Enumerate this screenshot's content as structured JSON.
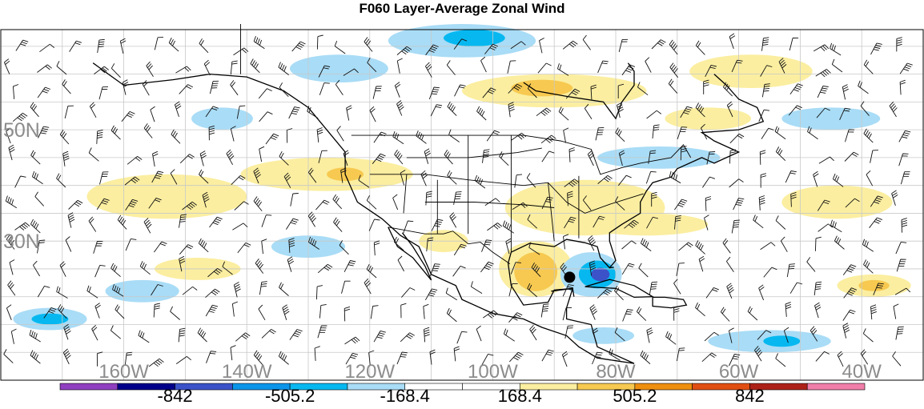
{
  "title": "F060 Layer-Average Zonal Wind",
  "map": {
    "projection": "cylindrical",
    "lon_range": [
      -180,
      -30
    ],
    "lat_range": [
      5,
      68
    ],
    "lat_labels": [
      {
        "text": "50N",
        "lat": 50
      },
      {
        "text": "30N",
        "lat": 30
      }
    ],
    "lon_labels": [
      {
        "text": "160W",
        "lon": -160
      },
      {
        "text": "140W",
        "lon": -140
      },
      {
        "text": "120W",
        "lon": -120
      },
      {
        "text": "100W",
        "lon": -100
      },
      {
        "text": "80W",
        "lon": -80
      },
      {
        "text": "60W",
        "lon": -60
      },
      {
        "text": "40W",
        "lon": -40
      }
    ],
    "marker": {
      "name": "station-dot",
      "lon": -87.5,
      "lat": 23.5
    },
    "shaded_regions": [
      {
        "level": "pos2",
        "lon": -88,
        "lat": 36.5,
        "rlon": 9,
        "rlat": 3
      },
      {
        "level": "pos3",
        "lon": -90,
        "lat": 36.2,
        "rlon": 5,
        "rlat": 2
      },
      {
        "level": "pos1",
        "lon": -85,
        "lat": 36,
        "rlon": 13,
        "rlat": 5
      },
      {
        "level": "pos1",
        "lon": -93,
        "lat": 25,
        "rlon": 6,
        "rlat": 5
      },
      {
        "level": "pos2",
        "lon": -93,
        "lat": 24.5,
        "rlon": 3.5,
        "rlat": 3.5
      },
      {
        "level": "neg1",
        "lon": -84,
        "lat": 24,
        "rlon": 5,
        "rlat": 4
      },
      {
        "level": "neg2",
        "lon": -83,
        "lat": 24,
        "rlon": 3,
        "rlat": 2.5
      },
      {
        "level": "neg3",
        "lon": -82.5,
        "lat": 24,
        "rlon": 1.5,
        "rlat": 1.2
      },
      {
        "level": "pos1",
        "lon": -90,
        "lat": 57,
        "rlon": 15,
        "rlat": 3
      },
      {
        "level": "pos2",
        "lon": -92,
        "lat": 57.5,
        "rlon": 5,
        "rlat": 1.5
      },
      {
        "level": "pos1",
        "lon": -58,
        "lat": 60.5,
        "rlon": 10,
        "rlat": 3
      },
      {
        "level": "neg1",
        "lon": -105,
        "lat": 66,
        "rlon": 12,
        "rlat": 3
      },
      {
        "level": "neg2",
        "lon": -103,
        "lat": 66.5,
        "rlon": 5,
        "rlat": 1.5
      },
      {
        "level": "neg1",
        "lon": -125,
        "lat": 61,
        "rlon": 8,
        "rlat": 2.5
      },
      {
        "level": "neg1",
        "lon": -144,
        "lat": 52,
        "rlon": 5,
        "rlat": 2
      },
      {
        "level": "pos1",
        "lon": -127,
        "lat": 42,
        "rlon": 14,
        "rlat": 3
      },
      {
        "level": "pos2",
        "lon": -124,
        "lat": 42,
        "rlon": 3,
        "rlat": 1.2
      },
      {
        "level": "pos1",
        "lon": -153,
        "lat": 38,
        "rlon": 13,
        "rlat": 4
      },
      {
        "level": "pos1",
        "lon": -75,
        "lat": 33,
        "rlon": 10,
        "rlat": 2
      },
      {
        "level": "pos1",
        "lon": -44,
        "lat": 37,
        "rlon": 9,
        "rlat": 3
      },
      {
        "level": "pos1",
        "lon": -38,
        "lat": 22,
        "rlon": 6,
        "rlat": 2
      },
      {
        "level": "pos2",
        "lon": -38,
        "lat": 22,
        "rlon": 2.5,
        "rlat": 1
      },
      {
        "level": "neg1",
        "lon": -130,
        "lat": 29,
        "rlon": 6,
        "rlat": 2
      },
      {
        "level": "neg1",
        "lon": -157,
        "lat": 21,
        "rlon": 6,
        "rlat": 2
      },
      {
        "level": "neg1",
        "lon": -172,
        "lat": 16,
        "rlon": 6,
        "rlat": 2
      },
      {
        "level": "neg2",
        "lon": -172,
        "lat": 16,
        "rlon": 3,
        "rlat": 1
      },
      {
        "level": "neg1",
        "lon": -73,
        "lat": 45,
        "rlon": 10,
        "rlat": 2
      },
      {
        "level": "neg1",
        "lon": -55,
        "lat": 12,
        "rlon": 10,
        "rlat": 2
      },
      {
        "level": "neg2",
        "lon": -53,
        "lat": 12,
        "rlon": 3,
        "rlat": 1
      },
      {
        "level": "neg1",
        "lon": -82,
        "lat": 13,
        "rlon": 5,
        "rlat": 1.5
      },
      {
        "level": "pos1",
        "lon": -148,
        "lat": 25,
        "rlon": 7,
        "rlat": 2
      },
      {
        "level": "pos1",
        "lon": -65,
        "lat": 52,
        "rlon": 7,
        "rlat": 2
      },
      {
        "level": "neg1",
        "lon": -45,
        "lat": 52,
        "rlon": 8,
        "rlat": 2
      },
      {
        "level": "pos1",
        "lon": -108,
        "lat": 30,
        "rlon": 4,
        "rlat": 2
      }
    ]
  },
  "colorbar": {
    "colors": [
      "#8f3fc0",
      "#01008a",
      "#3b52c9",
      "#0b95ea",
      "#07b8f0",
      "#a9dcf6",
      "#ffffff",
      "#ffffff",
      "#fbeea0",
      "#f7c950",
      "#ee8f0e",
      "#e14e12",
      "#ad2218",
      "#f07ea8"
    ],
    "labels": [
      "-842",
      "-505.2",
      "-168.4",
      "168.4",
      "505.2",
      "842"
    ],
    "level_colors": {
      "neg1": "#a9dcf6",
      "neg2": "#07b8f0",
      "neg3": "#3b52c9",
      "pos1": "#fbeea0",
      "pos2": "#f7c950",
      "pos3": "#e14e12"
    }
  }
}
